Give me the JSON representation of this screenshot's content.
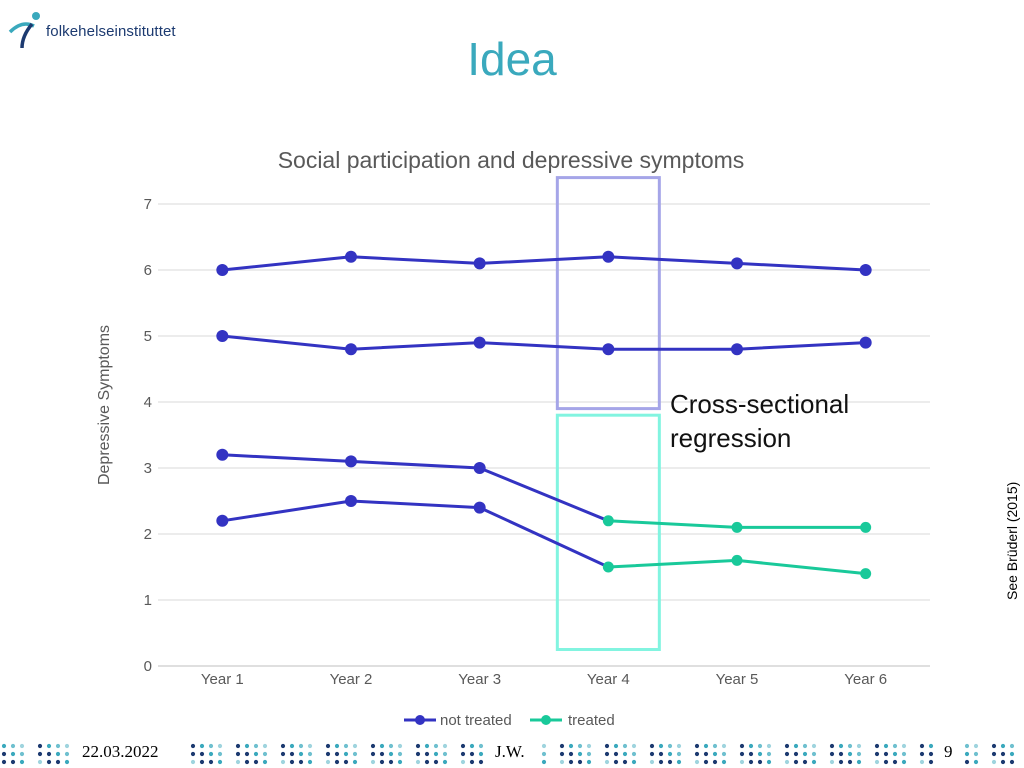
{
  "logo": {
    "text": "folkehelseinstituttet"
  },
  "slide": {
    "title": "Idea",
    "side_note": "See Brüderl (2015)"
  },
  "footer": {
    "date": "22.03.2022",
    "author": "J.W.",
    "page": "9"
  },
  "annotation": {
    "line1": "Cross-sectional",
    "line2": "regression"
  },
  "colors": {
    "not_treated": "#3333c2",
    "treated": "#19c99a",
    "box_purple": "#a5a5e8",
    "box_teal": "#82f4e0",
    "title": "#3aa9bd"
  },
  "chart_data": {
    "type": "line",
    "title": "Social participation and depressive symptoms",
    "ylabel": "Depressive Symptoms",
    "xlabel": "",
    "ylim": [
      0,
      7
    ],
    "yticks": [
      "0",
      "1",
      "2",
      "3",
      "4",
      "5",
      "6",
      "7"
    ],
    "categories": [
      "Year 1",
      "Year 2",
      "Year 3",
      "Year 4",
      "Year 5",
      "Year 6"
    ],
    "grid": true,
    "legend": {
      "position": "bottom",
      "entries": [
        "not treated",
        "treated"
      ]
    },
    "series": [
      {
        "group": "not treated",
        "values": [
          6.0,
          6.2,
          6.1,
          6.2,
          6.1,
          6.0
        ]
      },
      {
        "group": "not treated",
        "values": [
          5.0,
          4.8,
          4.9,
          4.8,
          4.8,
          4.9
        ]
      },
      {
        "group": "mixed",
        "values": [
          3.2,
          3.1,
          3.0,
          2.2,
          2.1,
          2.1
        ],
        "treated_from_index": 3
      },
      {
        "group": "mixed",
        "values": [
          2.2,
          2.5,
          2.4,
          1.5,
          1.6,
          1.4
        ],
        "treated_from_index": 3
      }
    ],
    "highlights": [
      {
        "category": "Year 4",
        "ylim": [
          3.9,
          7.4
        ],
        "color": "purple"
      },
      {
        "category": "Year 4",
        "ylim": [
          0.25,
          3.8
        ],
        "color": "teal"
      }
    ]
  }
}
